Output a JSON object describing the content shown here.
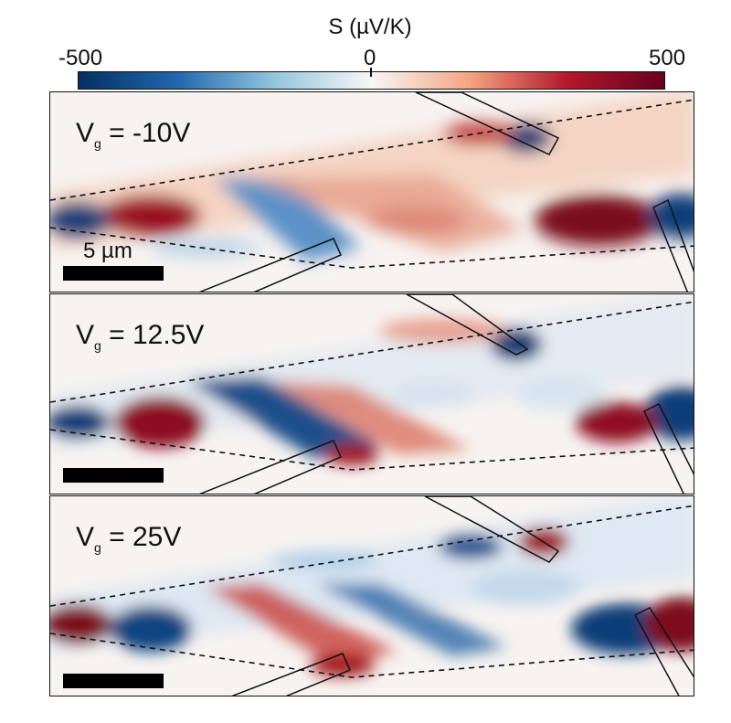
{
  "colorbar": {
    "title": "S  (µV/K)",
    "min_label": "-500",
    "mid_label": "0",
    "max_label": "500",
    "colors": [
      "#053061",
      "#2166ac",
      "#92c5de",
      "#f7f7f7",
      "#f4a582",
      "#b2182b",
      "#67001f"
    ]
  },
  "panels": [
    {
      "label_main": "V",
      "label_sub": "g",
      "label_rest": " = -10V",
      "scale_label": "5 µm"
    },
    {
      "label_main": "V",
      "label_sub": "g",
      "label_rest": " = 12.5V",
      "scale_label": ""
    },
    {
      "label_main": "V",
      "label_sub": "g",
      "label_rest": " = 25V",
      "scale_label": ""
    }
  ]
}
